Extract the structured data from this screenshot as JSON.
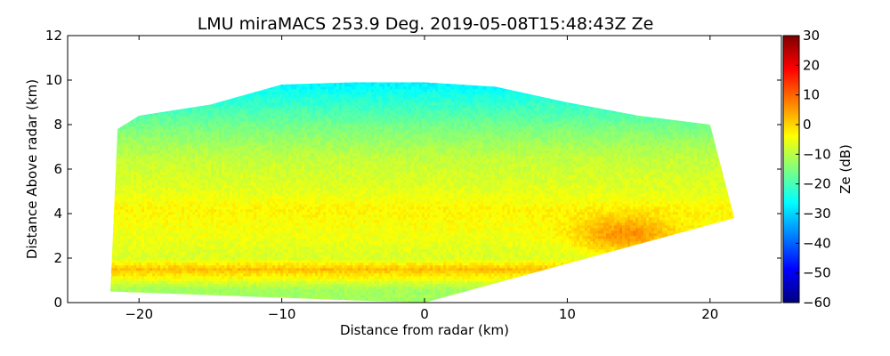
{
  "chart_data": {
    "type": "heatmap",
    "title": "LMU miraMACS 253.9 Deg. 2019-05-08T15:48:43Z  Ze",
    "xlabel": "Distance from radar (km)",
    "ylabel": "Distance Above radar  (km)",
    "xlim": [
      -25,
      25
    ],
    "ylim": [
      0,
      12
    ],
    "x_ticks": [
      -20,
      -10,
      0,
      10,
      20
    ],
    "x_tick_labels": [
      "−20",
      "−10",
      "0",
      "10",
      "20"
    ],
    "y_ticks": [
      0,
      2,
      4,
      6,
      8,
      10,
      12
    ],
    "y_tick_labels": [
      "0",
      "2",
      "4",
      "6",
      "8",
      "10",
      "12"
    ],
    "colorbar": {
      "label": "Ze (dB)",
      "range": [
        -60,
        30
      ],
      "ticks": [
        30,
        20,
        10,
        0,
        -10,
        -20,
        -30,
        -40,
        -50,
        -60
      ],
      "tick_labels": [
        "30",
        "20",
        "10",
        "0",
        "−10",
        "−20",
        "−30",
        "−40",
        "−50",
        "−60"
      ],
      "colormap": "jet"
    },
    "field": {
      "variable": "Ze",
      "units": "dB",
      "echo_top_km": [
        [
          -22,
          0.5
        ],
        [
          -21.5,
          7.8
        ],
        [
          -20,
          8.4
        ],
        [
          -15,
          8.9
        ],
        [
          -10,
          9.8
        ],
        [
          -5,
          9.9
        ],
        [
          0,
          9.9
        ],
        [
          5,
          9.7
        ],
        [
          10,
          9.0
        ],
        [
          15,
          8.4
        ],
        [
          20,
          8.0
        ],
        [
          21.7,
          3.8
        ]
      ],
      "lower_edge_km": [
        [
          -22,
          0.5
        ],
        [
          -5,
          0.1
        ],
        [
          0,
          0.0
        ],
        [
          21.7,
          3.8
        ]
      ],
      "layers": [
        {
          "height_km": 9.0,
          "ze_db": -22
        },
        {
          "height_km": 7.8,
          "ze_db": -15
        },
        {
          "height_km": 6.5,
          "ze_db": -9
        },
        {
          "height_km": 5.0,
          "ze_db": -6
        },
        {
          "height_km": 4.2,
          "ze_db": -3
        },
        {
          "height_km": 3.0,
          "ze_db": -5
        },
        {
          "height_km": 2.0,
          "ze_db": -7
        },
        {
          "height_km": 1.5,
          "ze_db": 2
        },
        {
          "height_km": 0.6,
          "ze_db": -12
        }
      ],
      "max_feature": {
        "x_km": 14,
        "y_km": 3.1,
        "ze_db": 6
      }
    }
  }
}
